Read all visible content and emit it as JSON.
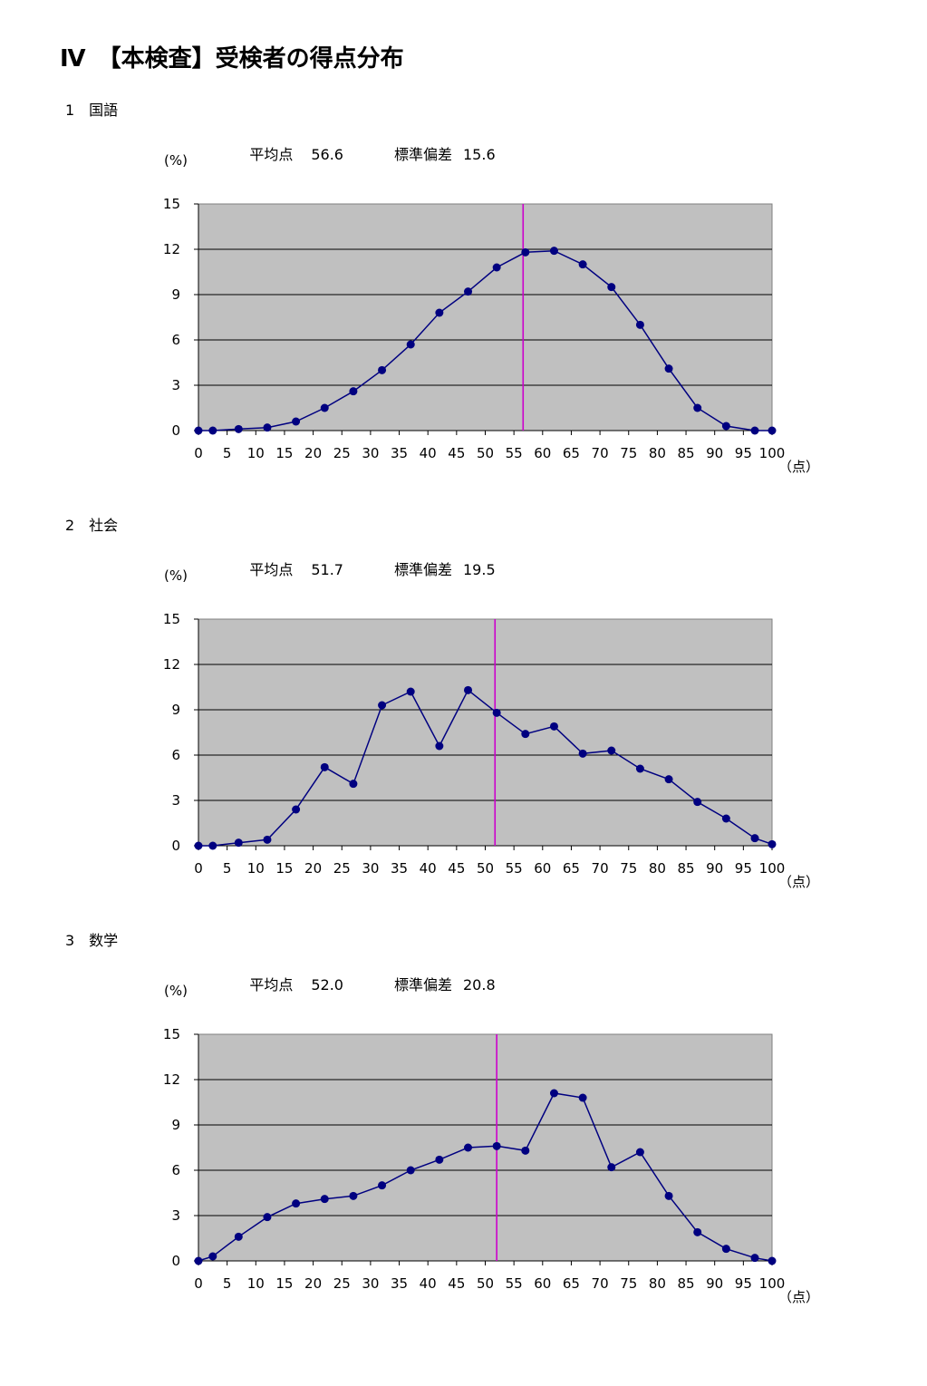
{
  "page": {
    "title": "Ⅳ　【本検査】受検者の得点分布"
  },
  "sections": [
    {
      "label": "1　国語",
      "mean_label": "平均点",
      "mean_value": "56.6",
      "sd_label": "標準偏差",
      "sd_value": "15.6",
      "y_unit": "(%)",
      "x_unit": "（点）"
    },
    {
      "label": "2　社会",
      "mean_label": "平均点",
      "mean_value": "51.7",
      "sd_label": "標準偏差",
      "sd_value": "19.5",
      "y_unit": "(%)",
      "x_unit": "（点）"
    },
    {
      "label": "3　数学",
      "mean_label": "平均点",
      "mean_value": "52.0",
      "sd_label": "標準偏差",
      "sd_value": "20.8",
      "y_unit": "(%)",
      "x_unit": "（点）"
    }
  ],
  "chart_data": [
    {
      "type": "line",
      "title": "",
      "xlabel": "（点）",
      "ylabel": "(%)",
      "xlim": [
        0,
        100
      ],
      "ylim": [
        0,
        15
      ],
      "x_ticks": [
        0,
        5,
        10,
        15,
        20,
        25,
        30,
        35,
        40,
        45,
        50,
        55,
        60,
        65,
        70,
        75,
        80,
        85,
        90,
        95,
        100
      ],
      "y_ticks": [
        0,
        3,
        6,
        9,
        12,
        15
      ],
      "grid": true,
      "mean_line": 56.6,
      "x": [
        0,
        2.5,
        7,
        12,
        17,
        22,
        27,
        32,
        37,
        42,
        47,
        52,
        57,
        62,
        67,
        72,
        77,
        82,
        87,
        92,
        97,
        100
      ],
      "values": [
        0,
        0,
        0.1,
        0.2,
        0.6,
        1.5,
        2.6,
        4.0,
        5.7,
        7.8,
        9.2,
        10.8,
        11.8,
        11.9,
        11.0,
        9.5,
        7.0,
        4.1,
        1.5,
        0.3,
        0,
        0
      ],
      "colors": {
        "line": "#000080",
        "marker": "#000080",
        "mean": "#cc00cc",
        "plot_bg": "#c0c0c0"
      }
    },
    {
      "type": "line",
      "title": "",
      "xlabel": "（点）",
      "ylabel": "(%)",
      "xlim": [
        0,
        100
      ],
      "ylim": [
        0,
        15
      ],
      "x_ticks": [
        0,
        5,
        10,
        15,
        20,
        25,
        30,
        35,
        40,
        45,
        50,
        55,
        60,
        65,
        70,
        75,
        80,
        85,
        90,
        95,
        100
      ],
      "y_ticks": [
        0,
        3,
        6,
        9,
        12,
        15
      ],
      "grid": true,
      "mean_line": 51.7,
      "x": [
        0,
        2.5,
        7,
        12,
        17,
        22,
        27,
        32,
        37,
        42,
        47,
        52,
        57,
        62,
        67,
        72,
        77,
        82,
        87,
        92,
        97,
        100
      ],
      "values": [
        0,
        0,
        0.2,
        0.4,
        2.4,
        5.2,
        4.1,
        9.3,
        10.2,
        6.6,
        10.3,
        8.8,
        7.4,
        7.9,
        6.1,
        6.3,
        5.1,
        4.4,
        2.9,
        1.8,
        0.5,
        0.1
      ],
      "colors": {
        "line": "#000080",
        "marker": "#000080",
        "mean": "#cc00cc",
        "plot_bg": "#c0c0c0"
      }
    },
    {
      "type": "line",
      "title": "",
      "xlabel": "（点）",
      "ylabel": "(%)",
      "xlim": [
        0,
        100
      ],
      "ylim": [
        0,
        15
      ],
      "x_ticks": [
        0,
        5,
        10,
        15,
        20,
        25,
        30,
        35,
        40,
        45,
        50,
        55,
        60,
        65,
        70,
        75,
        80,
        85,
        90,
        95,
        100
      ],
      "y_ticks": [
        0,
        3,
        6,
        9,
        12,
        15
      ],
      "grid": true,
      "mean_line": 52.0,
      "x": [
        0,
        2.5,
        7,
        12,
        17,
        22,
        27,
        32,
        37,
        42,
        47,
        52,
        57,
        62,
        67,
        72,
        77,
        82,
        87,
        92,
        97,
        100
      ],
      "values": [
        0,
        0.3,
        1.6,
        2.9,
        3.8,
        4.1,
        4.3,
        5.0,
        6.0,
        6.7,
        7.5,
        7.6,
        7.3,
        11.1,
        10.8,
        6.2,
        7.2,
        4.3,
        1.9,
        0.8,
        0.2,
        0
      ],
      "colors": {
        "line": "#000080",
        "marker": "#000080",
        "mean": "#cc00cc",
        "plot_bg": "#c0c0c0"
      }
    }
  ]
}
